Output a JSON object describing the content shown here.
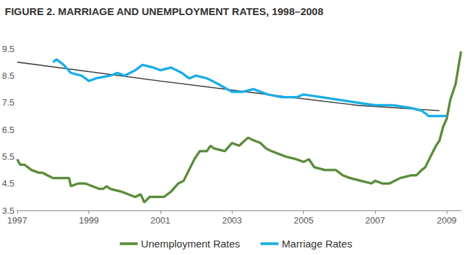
{
  "chart_data": {
    "type": "line",
    "title": "FIGURE 2. MARRIAGE AND UNEMPLOYMENT RATES, 1998–2008",
    "xlim": [
      1997,
      2009.4
    ],
    "xticks": [
      1997,
      1999,
      2001,
      2003,
      2005,
      2007,
      2009
    ],
    "ylim": [
      3.5,
      9.5
    ],
    "yticks": [
      3.5,
      4.5,
      5.5,
      6.5,
      7.5,
      8.5,
      9.5
    ],
    "grid": false,
    "legend": "bottom",
    "series": [
      {
        "name": "Unemployment Rates",
        "color": "#5b8c3a",
        "x": [
          1997.0,
          1997.08,
          1997.2,
          1997.4,
          1997.6,
          1997.7,
          1997.85,
          1998.0,
          1998.3,
          1998.45,
          1998.5,
          1998.7,
          1998.9,
          1999.1,
          1999.3,
          1999.4,
          1999.5,
          1999.6,
          1999.9,
          2000.1,
          2000.3,
          2000.45,
          2000.55,
          2000.7,
          2000.9,
          2001.1,
          2001.3,
          2001.5,
          2001.65,
          2001.8,
          2001.95,
          2002.1,
          2002.3,
          2002.4,
          2002.5,
          2002.8,
          2003.0,
          2003.2,
          2003.45,
          2003.6,
          2003.8,
          2003.95,
          2004.1,
          2004.3,
          2004.5,
          2004.8,
          2005.0,
          2005.15,
          2005.3,
          2005.6,
          2005.9,
          2006.1,
          2006.3,
          2006.6,
          2006.9,
          2007.0,
          2007.2,
          2007.4,
          2007.7,
          2008.0,
          2008.15,
          2008.3,
          2008.4,
          2008.55,
          2008.7,
          2008.8,
          2008.9,
          2009.0,
          2009.1,
          2009.25,
          2009.4
        ],
        "values": [
          5.4,
          5.2,
          5.2,
          5.0,
          4.9,
          4.9,
          4.8,
          4.7,
          4.7,
          4.7,
          4.4,
          4.5,
          4.5,
          4.4,
          4.3,
          4.3,
          4.4,
          4.3,
          4.2,
          4.1,
          4.0,
          4.1,
          3.8,
          4.0,
          4.0,
          4.0,
          4.2,
          4.5,
          4.6,
          5.0,
          5.4,
          5.7,
          5.7,
          5.9,
          5.8,
          5.7,
          6.0,
          5.9,
          6.2,
          6.1,
          6.0,
          5.8,
          5.7,
          5.6,
          5.5,
          5.4,
          5.3,
          5.4,
          5.1,
          5.0,
          5.0,
          4.8,
          4.7,
          4.6,
          4.5,
          4.6,
          4.5,
          4.5,
          4.7,
          4.8,
          4.8,
          5.0,
          5.1,
          5.5,
          5.9,
          6.1,
          6.6,
          6.9,
          7.6,
          8.2,
          9.4
        ]
      },
      {
        "name": "Marriage Rates",
        "color": "#19ade6",
        "x": [
          1998.0,
          1998.1,
          1998.3,
          1998.5,
          1998.8,
          1999.0,
          1999.2,
          1999.6,
          1999.8,
          2000.0,
          2000.3,
          2000.5,
          2000.8,
          2001.0,
          2001.3,
          2001.6,
          2001.8,
          2002.0,
          2002.3,
          2002.6,
          2003.0,
          2003.3,
          2003.6,
          2004.0,
          2004.4,
          2004.8,
          2005.0,
          2005.5,
          2006.0,
          2006.5,
          2007.0,
          2007.5,
          2008.0,
          2008.3,
          2008.5,
          2009.0
        ],
        "values": [
          9.0,
          9.1,
          8.9,
          8.6,
          8.5,
          8.3,
          8.4,
          8.5,
          8.6,
          8.5,
          8.7,
          8.9,
          8.8,
          8.7,
          8.8,
          8.6,
          8.4,
          8.5,
          8.4,
          8.2,
          7.9,
          7.9,
          8.0,
          7.8,
          7.7,
          7.7,
          7.8,
          7.7,
          7.6,
          7.5,
          7.4,
          7.4,
          7.3,
          7.2,
          7.0,
          7.0
        ]
      },
      {
        "color": "#444444",
        "x": [
          1997.0,
          2001.0,
          2004.0,
          2006.5,
          2008.8
        ],
        "values": [
          9.0,
          8.3,
          7.8,
          7.4,
          7.2
        ]
      }
    ]
  }
}
